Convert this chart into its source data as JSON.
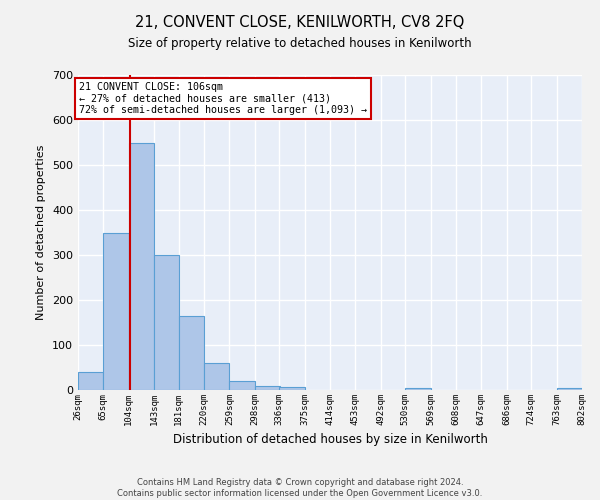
{
  "title": "21, CONVENT CLOSE, KENILWORTH, CV8 2FQ",
  "subtitle": "Size of property relative to detached houses in Kenilworth",
  "xlabel": "Distribution of detached houses by size in Kenilworth",
  "ylabel": "Number of detached properties",
  "footer1": "Contains HM Land Registry data © Crown copyright and database right 2024.",
  "footer2": "Contains public sector information licensed under the Open Government Licence v3.0.",
  "annotation_title": "21 CONVENT CLOSE: 106sqm",
  "annotation_line1": "← 27% of detached houses are smaller (413)",
  "annotation_line2": "72% of semi-detached houses are larger (1,093) →",
  "property_size": 106,
  "bin_edges": [
    26,
    65,
    104,
    143,
    181,
    220,
    259,
    298,
    336,
    375,
    414,
    453,
    492,
    530,
    569,
    608,
    647,
    686,
    724,
    763,
    802
  ],
  "bar_heights": [
    40,
    350,
    550,
    300,
    165,
    60,
    20,
    10,
    6,
    0,
    0,
    0,
    0,
    5,
    0,
    0,
    0,
    0,
    0,
    5
  ],
  "bar_color": "#aec6e8",
  "bar_edge_color": "#5a9fd4",
  "redline_color": "#cc0000",
  "annotation_box_color": "#ffffff",
  "annotation_box_edge_color": "#cc0000",
  "background_color": "#e8eef8",
  "grid_color": "#ffffff",
  "fig_background": "#f2f2f2",
  "ylim": [
    0,
    700
  ],
  "tick_labels": [
    "26sqm",
    "65sqm",
    "104sqm",
    "143sqm",
    "181sqm",
    "220sqm",
    "259sqm",
    "298sqm",
    "336sqm",
    "375sqm",
    "414sqm",
    "453sqm",
    "492sqm",
    "530sqm",
    "569sqm",
    "608sqm",
    "647sqm",
    "686sqm",
    "724sqm",
    "763sqm",
    "802sqm"
  ]
}
